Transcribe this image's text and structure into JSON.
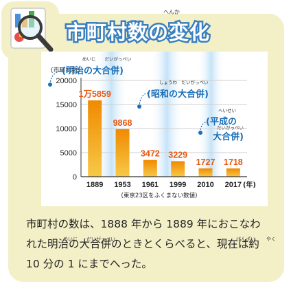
{
  "title": "市町村数の変化",
  "title_ruby": "へんか",
  "chart_data": {
    "type": "bar",
    "categories": [
      "1889",
      "1953",
      "1961",
      "1999",
      "2010",
      "2017"
    ],
    "x_unit": "(年)",
    "values": [
      15859,
      9868,
      3472,
      3229,
      1727,
      1718
    ],
    "value_labels": [
      "1万5859",
      "9868",
      "3472",
      "3229",
      "1727",
      "1718"
    ],
    "ylabel": "(市町村数)",
    "ylim": [
      0,
      20000
    ],
    "yticks": [
      "0",
      "5000",
      "10000",
      "15000",
      "20000"
    ],
    "note": "(東京23区をふくまない数値)",
    "annotations": [
      {
        "text": "(明治の大合併)",
        "ruby": "めいじ　　だいがっぺい"
      },
      {
        "text": "(昭和の大合併)",
        "ruby": "しょうわ　だいがっぺい"
      },
      {
        "text_line1": "(平成の",
        "text_line2": "大合併)",
        "ruby1": "へいせい",
        "ruby2": "だいがっぺい"
      }
    ],
    "bar_color": "#f39800",
    "label_color": "#e8550c"
  },
  "caption": {
    "line1": "市町村の数は、1888 年から 1889 年におこなわ",
    "line2": "れた明治の大合併のときとくらべると、現在は約",
    "line3": "10 分の 1 にまでへった。",
    "ruby_meiji": "めいじ",
    "ruby_daigappei": "だいがっぺい",
    "ruby_genzai": "げんざい",
    "ruby_yaku": "やく"
  }
}
